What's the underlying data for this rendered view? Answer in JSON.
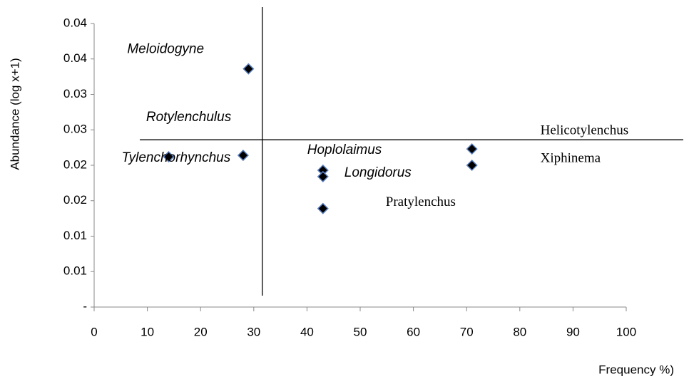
{
  "chart_data": {
    "type": "scatter",
    "y_label": "Abundance (log x+1)",
    "x_label": "Frequency %)",
    "x": [
      14,
      28,
      29,
      43,
      43,
      43,
      71,
      71
    ],
    "values": [
      0.0212,
      0.0214,
      0.0336,
      0.0193,
      0.0184,
      0.0139,
      0.0223,
      0.02
    ],
    "labels": [
      "Tylenchorhynchus",
      "Rotylenchulus",
      "Meloidogyne",
      "Hoplolaimus",
      "Longidorus",
      "Pratylenchus",
      "Helicotylenchus",
      "Xiphinema"
    ],
    "color": "#000000",
    "edge_color": "#5b7fbf",
    "reference_lines": {
      "x": 31.6,
      "y": 0.0236
    },
    "xlim": [
      0,
      100
    ],
    "xticks": [
      0,
      10,
      20,
      30,
      40,
      50,
      60,
      70,
      80,
      90,
      100
    ],
    "ylim": [
      0,
      0.04
    ],
    "yticks": [
      {
        "value": 0,
        "label": "-"
      },
      {
        "value": 0.005,
        "label": "0.01"
      },
      {
        "value": 0.01,
        "label": "0.01"
      },
      {
        "value": 0.015,
        "label": "0.02"
      },
      {
        "value": 0.02,
        "label": "0.02"
      },
      {
        "value": 0.025,
        "label": "0.03"
      },
      {
        "value": 0.03,
        "label": "0.03"
      },
      {
        "value": 0.035,
        "label": "0.04"
      },
      {
        "value": 0.04,
        "label": "0.04"
      }
    ]
  }
}
